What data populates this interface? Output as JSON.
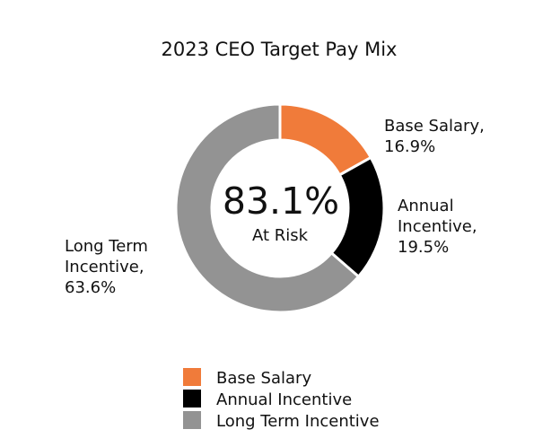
{
  "chart_data": {
    "type": "pie",
    "style": "donut",
    "title": "2023 CEO Target Pay Mix",
    "center_value": "83.1%",
    "center_label": "At Risk",
    "slices": [
      {
        "name": "Base Salary",
        "value": 16.9,
        "color": "#F07B3A",
        "label_lines": [
          "Base Salary,",
          "16.9%"
        ]
      },
      {
        "name": "Annual Incentive",
        "value": 19.5,
        "color": "#000000",
        "label_lines": [
          "Annual",
          "Incentive,",
          "19.5%"
        ]
      },
      {
        "name": "Long Term Incentive",
        "value": 63.6,
        "color": "#939393",
        "label_lines": [
          "Long Term",
          "Incentive,",
          "63.6%"
        ]
      }
    ],
    "legend": {
      "position": "bottom",
      "entries": [
        "Base Salary",
        "Annual Incentive",
        "Long Term Incentive"
      ]
    }
  }
}
